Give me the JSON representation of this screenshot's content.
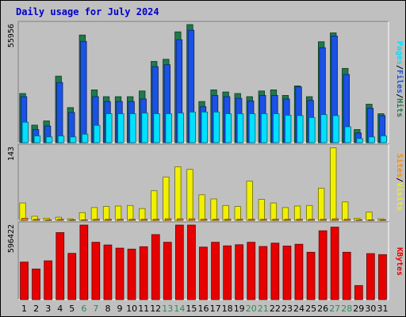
{
  "chart_data": [
    {
      "type": "bar",
      "title": "Daily usage for July 2024",
      "categories": [
        "1",
        "2",
        "3",
        "4",
        "5",
        "6",
        "7",
        "8",
        "9",
        "10",
        "11",
        "12",
        "13",
        "14",
        "15",
        "16",
        "17",
        "18",
        "19",
        "20",
        "21",
        "22",
        "23",
        "24",
        "25",
        "26",
        "27",
        "28",
        "29",
        "30",
        "31"
      ],
      "weekend_days": [
        "6",
        "7",
        "13",
        "14",
        "20",
        "21",
        "27",
        "28"
      ],
      "ylim": [
        0,
        55956
      ],
      "ytick_label": "55956",
      "side_label": {
        "parts": [
          "Pages",
          "/",
          "Files",
          "/",
          "Hits"
        ],
        "colors": [
          "#00e0ff",
          "#000000",
          "#1a52e6",
          "#000000",
          "#1f7a4a"
        ]
      },
      "series": [
        {
          "name": "Hits",
          "color": "#1f7a4a",
          "values": [
            23300,
            8300,
            10300,
            31500,
            16600,
            51000,
            25000,
            21800,
            21800,
            21800,
            24500,
            38500,
            39500,
            52500,
            57000,
            19500,
            25000,
            24000,
            23300,
            21800,
            24500,
            25000,
            22400,
            26900,
            21800,
            47800,
            52000,
            35200,
            6200,
            18200,
            13700
          ]
        },
        {
          "name": "Files",
          "color": "#1a52e6",
          "values": [
            21800,
            6200,
            7900,
            28500,
            14300,
            48000,
            21800,
            19500,
            19500,
            19500,
            20700,
            36000,
            36900,
            48800,
            53300,
            17000,
            22400,
            21800,
            21000,
            19800,
            22400,
            22400,
            20700,
            26400,
            20000,
            45000,
            50500,
            32300,
            4600,
            16300,
            12800
          ]
        },
        {
          "name": "Pages",
          "color": "#00e0ff",
          "values": [
            9700,
            3200,
            2700,
            3200,
            2700,
            4000,
            8200,
            13700,
            13700,
            13700,
            14000,
            13700,
            13700,
            14000,
            14500,
            14500,
            14500,
            13700,
            13700,
            13700,
            13700,
            13700,
            13000,
            12800,
            11900,
            13300,
            12800,
            7500,
            1900,
            2700,
            3200
          ]
        }
      ]
    },
    {
      "type": "bar",
      "categories": [
        "1",
        "2",
        "3",
        "4",
        "5",
        "6",
        "7",
        "8",
        "9",
        "10",
        "11",
        "12",
        "13",
        "14",
        "15",
        "16",
        "17",
        "18",
        "19",
        "20",
        "21",
        "22",
        "23",
        "24",
        "25",
        "26",
        "27",
        "28",
        "29",
        "30",
        "31"
      ],
      "ylim": [
        0,
        143
      ],
      "ytick_label": "143",
      "side_label": {
        "parts": [
          "Sites",
          "/",
          "Visits"
        ],
        "colors": [
          "#ff8a00",
          "#000000",
          "#f0f000"
        ]
      },
      "series": [
        {
          "name": "Sites",
          "color": "#ff8a00",
          "values": [
            4,
            2,
            1,
            2,
            1,
            1,
            2,
            2,
            2,
            2,
            2,
            2,
            3,
            3,
            3,
            2,
            2,
            2,
            2,
            2,
            2,
            2,
            2,
            2,
            2,
            2,
            3,
            2,
            1,
            1,
            1
          ]
        },
        {
          "name": "Visits",
          "color": "#f0f000",
          "values": [
            34,
            8,
            4,
            6,
            3,
            15,
            25,
            27,
            28,
            29,
            23,
            58,
            85,
            105,
            100,
            50,
            42,
            29,
            27,
            77,
            41,
            34,
            25,
            28,
            29,
            63,
            142,
            36,
            4,
            16,
            3
          ]
        }
      ]
    },
    {
      "type": "bar",
      "categories": [
        "1",
        "2",
        "3",
        "4",
        "5",
        "6",
        "7",
        "8",
        "9",
        "10",
        "11",
        "12",
        "13",
        "14",
        "15",
        "16",
        "17",
        "18",
        "19",
        "20",
        "21",
        "22",
        "23",
        "24",
        "25",
        "26",
        "27",
        "28",
        "29",
        "30",
        "31"
      ],
      "ylim": [
        0,
        596422
      ],
      "ytick_label": "596422",
      "side_label": {
        "parts": [
          "KBytes"
        ],
        "colors": [
          "#e60000"
        ]
      },
      "series": [
        {
          "name": "KBytes",
          "color": "#e60000",
          "values": [
            300000,
            245000,
            310000,
            536000,
            370000,
            600000,
            459000,
            437000,
            412000,
            404000,
            423000,
            520000,
            459000,
            600000,
            600000,
            420000,
            459000,
            430000,
            439000,
            459000,
            425000,
            452000,
            429000,
            443000,
            379000,
            551000,
            580000,
            379000,
            112000,
            368000,
            360000
          ]
        }
      ]
    }
  ]
}
